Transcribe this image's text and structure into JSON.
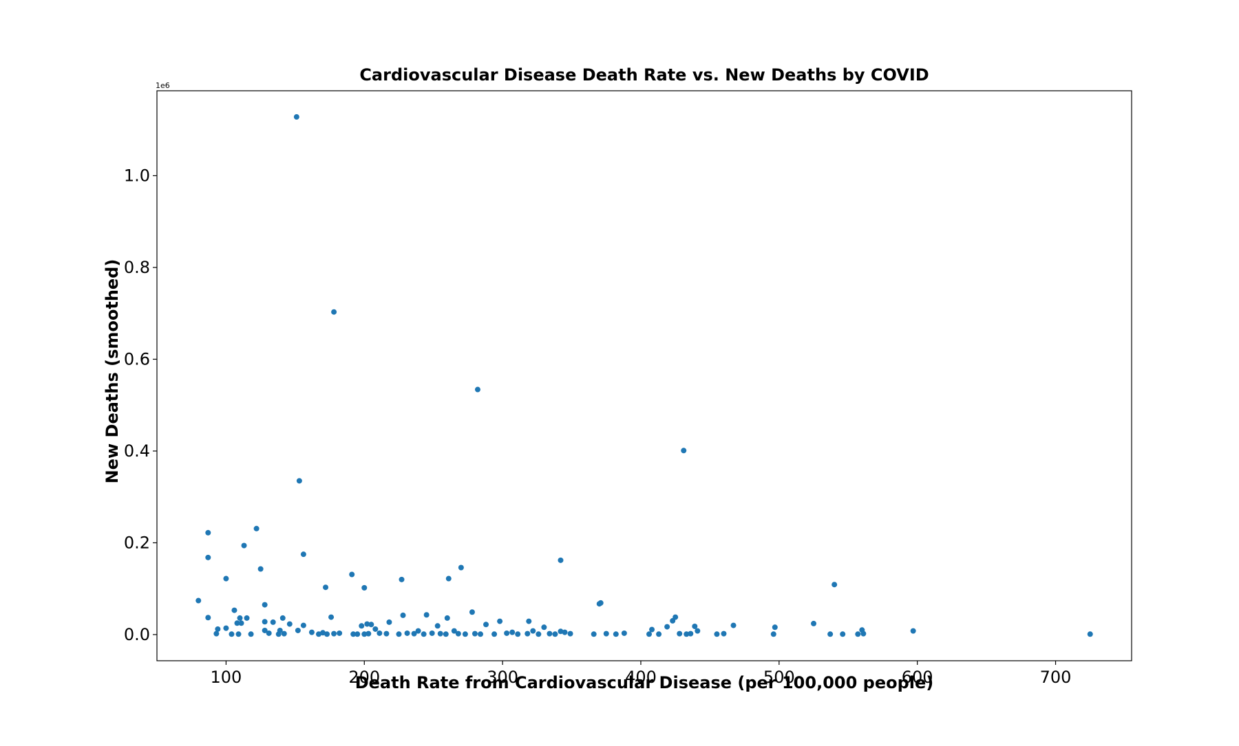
{
  "chart_data": {
    "type": "scatter",
    "title": "Cardiovascular Disease Death Rate vs. New Deaths by COVID",
    "xlabel": "Death Rate from Cardiovascular Disease (per 100,000 people)",
    "ylabel": "New Deaths (smoothed)",
    "y_offset_label": "1e6",
    "xlim": [
      50,
      755
    ],
    "ylim": [
      -0.057,
      1.185
    ],
    "x_ticks": [
      100,
      200,
      300,
      400,
      500,
      600,
      700
    ],
    "x_tick_labels": [
      "100",
      "200",
      "300",
      "400",
      "500",
      "600",
      "700"
    ],
    "y_ticks": [
      0.0,
      0.2,
      0.4,
      0.6,
      0.8,
      1.0
    ],
    "y_tick_labels": [
      "0.0",
      "0.2",
      "0.4",
      "0.6",
      "0.8",
      "1.0"
    ],
    "grid": false,
    "marker_color": "#1f77b4",
    "points": [
      [
        151,
        1.128
      ],
      [
        178,
        0.703
      ],
      [
        282,
        0.534
      ],
      [
        431,
        0.401
      ],
      [
        153,
        0.335
      ],
      [
        122,
        0.231
      ],
      [
        87,
        0.222
      ],
      [
        113,
        0.194
      ],
      [
        156,
        0.175
      ],
      [
        87,
        0.168
      ],
      [
        342,
        0.162
      ],
      [
        270,
        0.146
      ],
      [
        125,
        0.143
      ],
      [
        191,
        0.131
      ],
      [
        100,
        0.122
      ],
      [
        261,
        0.122
      ],
      [
        227,
        0.12
      ],
      [
        540,
        0.109
      ],
      [
        200,
        0.102
      ],
      [
        172,
        0.103
      ],
      [
        80,
        0.074
      ],
      [
        371,
        0.069
      ],
      [
        370,
        0.067
      ],
      [
        128,
        0.065
      ],
      [
        106,
        0.053
      ],
      [
        278,
        0.049
      ],
      [
        228,
        0.042
      ],
      [
        245,
        0.043
      ],
      [
        425,
        0.038
      ],
      [
        87,
        0.037
      ],
      [
        176,
        0.038
      ],
      [
        110,
        0.036
      ],
      [
        115,
        0.036
      ],
      [
        141,
        0.036
      ],
      [
        260,
        0.036
      ],
      [
        423,
        0.03
      ],
      [
        319,
        0.029
      ],
      [
        298,
        0.029
      ],
      [
        128,
        0.028
      ],
      [
        134,
        0.027
      ],
      [
        218,
        0.027
      ],
      [
        108,
        0.025
      ],
      [
        111,
        0.025
      ],
      [
        146,
        0.023
      ],
      [
        525,
        0.024
      ],
      [
        202,
        0.023
      ],
      [
        205,
        0.022
      ],
      [
        288,
        0.022
      ],
      [
        198,
        0.019
      ],
      [
        156,
        0.02
      ],
      [
        253,
        0.019
      ],
      [
        467,
        0.02
      ],
      [
        439,
        0.018
      ],
      [
        419,
        0.017
      ],
      [
        497,
        0.016
      ],
      [
        330,
        0.016
      ],
      [
        100,
        0.014
      ],
      [
        94,
        0.012
      ],
      [
        208,
        0.012
      ],
      [
        152,
        0.009
      ],
      [
        139,
        0.009
      ],
      [
        128,
        0.009
      ],
      [
        239,
        0.008
      ],
      [
        265,
        0.008
      ],
      [
        322,
        0.008
      ],
      [
        408,
        0.011
      ],
      [
        441,
        0.008
      ],
      [
        560,
        0.01
      ],
      [
        597,
        0.008
      ],
      [
        342,
        0.007
      ],
      [
        345,
        0.005
      ],
      [
        307,
        0.005
      ],
      [
        93,
        0.002
      ],
      [
        104,
        0.001
      ],
      [
        109,
        0.001
      ],
      [
        118,
        0.001
      ],
      [
        131,
        0.003
      ],
      [
        138,
        0.001
      ],
      [
        142,
        0.002
      ],
      [
        162,
        0.005
      ],
      [
        167,
        0.001
      ],
      [
        170,
        0.004
      ],
      [
        173,
        0.001
      ],
      [
        178,
        0.002
      ],
      [
        182,
        0.003
      ],
      [
        192,
        0.001
      ],
      [
        195,
        0.001
      ],
      [
        200,
        0.001
      ],
      [
        203,
        0.002
      ],
      [
        211,
        0.003
      ],
      [
        216,
        0.002
      ],
      [
        225,
        0.001
      ],
      [
        231,
        0.003
      ],
      [
        236,
        0.002
      ],
      [
        243,
        0.001
      ],
      [
        249,
        0.003
      ],
      [
        255,
        0.002
      ],
      [
        259,
        0.001
      ],
      [
        268,
        0.002
      ],
      [
        273,
        0.001
      ],
      [
        280,
        0.002
      ],
      [
        284,
        0.001
      ],
      [
        294,
        0.001
      ],
      [
        303,
        0.003
      ],
      [
        311,
        0.001
      ],
      [
        318,
        0.002
      ],
      [
        326,
        0.001
      ],
      [
        334,
        0.002
      ],
      [
        338,
        0.001
      ],
      [
        349,
        0.002
      ],
      [
        366,
        0.001
      ],
      [
        375,
        0.002
      ],
      [
        382,
        0.001
      ],
      [
        388,
        0.003
      ],
      [
        406,
        0.001
      ],
      [
        413,
        0.001
      ],
      [
        428,
        0.002
      ],
      [
        433,
        0.001
      ],
      [
        436,
        0.002
      ],
      [
        455,
        0.001
      ],
      [
        460,
        0.002
      ],
      [
        496,
        0.001
      ],
      [
        537,
        0.001
      ],
      [
        546,
        0.001
      ],
      [
        557,
        0.001
      ],
      [
        561,
        0.002
      ],
      [
        725,
        0.001
      ]
    ]
  }
}
